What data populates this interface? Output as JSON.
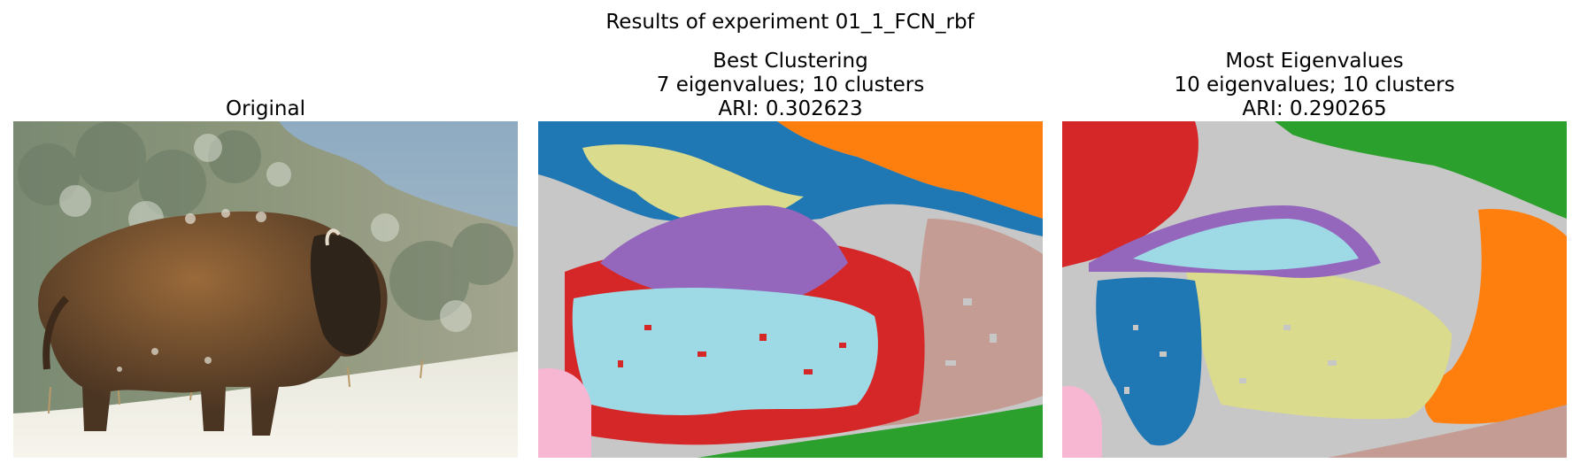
{
  "figure": {
    "suptitle": "Results of experiment 01_1_FCN_rbf"
  },
  "panels": [
    {
      "title_lines": [
        "Original"
      ],
      "image": "photo of an American bison standing on a snowy slope in front of frosted trees"
    },
    {
      "title_lines": [
        "Best Clustering",
        "7 eigenvalues; 10 clusters",
        "ARI: 0.302623"
      ],
      "image": "segmentation map of the bison photo with 10 colored clusters"
    },
    {
      "title_lines": [
        "Most Eigenvalues",
        "10 eigenvalues; 10 clusters",
        "ARI: 0.290265"
      ],
      "image": "segmentation map of the bison photo with 10 colored clusters"
    }
  ],
  "cluster_colors": {
    "blue": "#1f77b4",
    "orange": "#ff7f0e",
    "green": "#2ca02c",
    "red": "#d62728",
    "purple": "#9467bd",
    "brown": "#c49c94",
    "pink": "#f7b6d2",
    "gray": "#c7c7c7",
    "olive": "#dbdb8d",
    "cyan": "#9edae5"
  }
}
